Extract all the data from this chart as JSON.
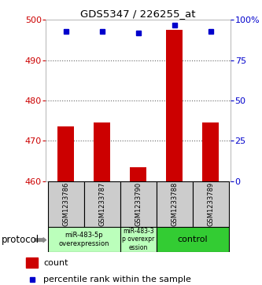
{
  "title": "GDS5347 / 226255_at",
  "samples": [
    "GSM1233786",
    "GSM1233787",
    "GSM1233790",
    "GSM1233788",
    "GSM1233789"
  ],
  "count_values": [
    473.5,
    474.5,
    463.5,
    497.5,
    474.5
  ],
  "percentile_values": [
    93,
    93,
    92,
    97,
    93
  ],
  "ylim_left": [
    460,
    500
  ],
  "ylim_right": [
    0,
    100
  ],
  "yticks_left": [
    460,
    470,
    480,
    490,
    500
  ],
  "yticks_right": [
    0,
    25,
    50,
    75,
    100
  ],
  "yticklabels_right": [
    "0",
    "25",
    "50",
    "75",
    "100%"
  ],
  "bar_color": "#cc0000",
  "dot_color": "#0000cc",
  "bar_width": 0.45,
  "grid_color": "#666666",
  "background_color": "#ffffff",
  "sample_box_color": "#cccccc",
  "left_tick_color": "#cc0000",
  "right_tick_color": "#0000cc",
  "protocol_label": "protocol",
  "legend_count_label": "count",
  "legend_percentile_label": "percentile rank within the sample",
  "group1_label": "miR-483-5p\noverexpression",
  "group1_color": "#bbffbb",
  "group2_label": "miR-483-3\np overexpr\nession",
  "group2_color": "#bbffbb",
  "group3_label": "control",
  "group3_color": "#33cc33"
}
